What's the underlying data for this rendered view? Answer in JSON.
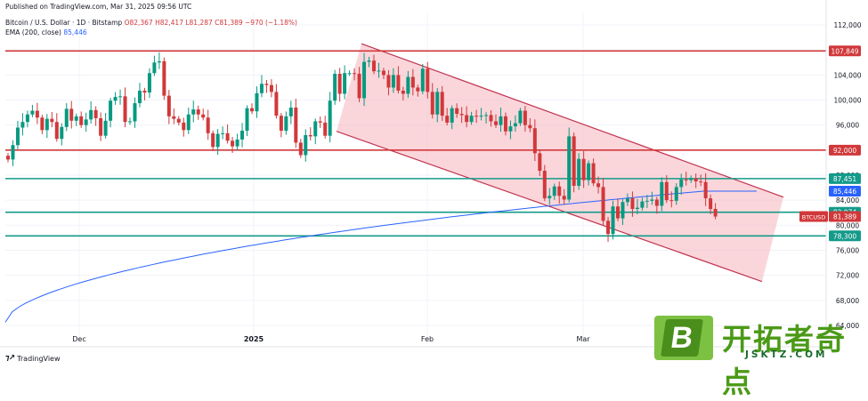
{
  "header": {
    "published": "Published on TradingView.com, Mar 31, 2025 09:56 UTC",
    "symbol": "Bitcoin / U.S. Dollar · 1D · Bitstamp",
    "ohlc": "O82,367  H82,417  L81,287  C81,389  −970 (−1.18%)",
    "ema_label": "EMA (200, close)",
    "ema_value": "85,446"
  },
  "branding": {
    "tradingview": "TradingView",
    "watermark_cn": "开拓者奇点",
    "watermark_en": "JSKTZ.COM",
    "watermark_letter": "B"
  },
  "chart_data": {
    "type": "candlestick",
    "symbol": "BTCUSD",
    "interval": "1D",
    "x_ticks": [
      "Dec",
      "2025",
      "Feb",
      "Mar"
    ],
    "y_ticks": [
      64000,
      68000,
      72000,
      76000,
      80000,
      84000,
      88000,
      92000,
      96000,
      100000,
      104000,
      108000,
      112000
    ],
    "ylim": [
      62000,
      114000
    ],
    "horizontal_levels": [
      {
        "value": 107849,
        "label": "107,849",
        "color": "#d1383a"
      },
      {
        "value": 92000,
        "label": "92,000",
        "color": "#d1383a"
      },
      {
        "value": 87451,
        "label": "87,451",
        "color": "#149a8a"
      },
      {
        "value": 82074,
        "label": "82,074",
        "color": "#149a8a"
      },
      {
        "value": 78300,
        "label": "78,300",
        "color": "#149a8a"
      }
    ],
    "price_labels": [
      {
        "value": 85446,
        "label": "85,446",
        "color": "#2962ff"
      },
      {
        "value": 81389,
        "label": "81,389",
        "color": "#d1383a",
        "tag": "BTCUSD"
      }
    ],
    "ema200": {
      "name": "EMA (200, close)",
      "start": 64500,
      "end": 85446,
      "color": "#2962ff"
    },
    "channel": {
      "color": "#f5b5bd",
      "upper_start": 109000,
      "upper_end": 84500,
      "lower_start": 95000,
      "lower_end": 71000
    },
    "colors": {
      "up": "#089981",
      "down": "#d1383a"
    },
    "closes": [
      90500,
      92800,
      95600,
      96500,
      97700,
      98300,
      97200,
      95200,
      97000,
      96500,
      93800,
      95700,
      98600,
      96700,
      97400,
      96000,
      96900,
      98400,
      97100,
      94300,
      96700,
      99900,
      100500,
      100600,
      96500,
      96600,
      99500,
      101500,
      101200,
      104300,
      106000,
      106200,
      100700,
      97400,
      97000,
      96400,
      95200,
      97700,
      98500,
      97700,
      97200,
      94700,
      92500,
      94600,
      94700,
      93500,
      92600,
      93700,
      95100,
      98700,
      98200,
      101100,
      102600,
      102400,
      101300,
      97500,
      95100,
      97400,
      98800,
      93200,
      91200,
      94400,
      94200,
      96600,
      96400,
      94300,
      99900,
      104200,
      101000,
      104300,
      104300,
      104200,
      100300,
      106100,
      106300,
      104600,
      104700,
      104000,
      102000,
      104000,
      101500,
      101000,
      103700,
      102000,
      101400,
      105000,
      101300,
      97700,
      101300,
      97500,
      96400,
      98700,
      97800,
      97600,
      96500,
      97500,
      97400,
      97500,
      97600,
      96600,
      96000,
      97400,
      95000,
      95800,
      96300,
      98300,
      96000,
      95500,
      91500,
      88700,
      84300,
      84700,
      86200,
      84700,
      84100,
      94200,
      86300,
      90600,
      87200,
      89900,
      86700,
      86100,
      80700,
      78600,
      83000,
      81100,
      83700,
      84300,
      82600,
      82800,
      83800,
      83900,
      84100,
      83100,
      86900,
      84000,
      83900,
      86100,
      87300,
      87200,
      87500,
      87000,
      86900,
      84300,
      82600,
      81389
    ]
  }
}
